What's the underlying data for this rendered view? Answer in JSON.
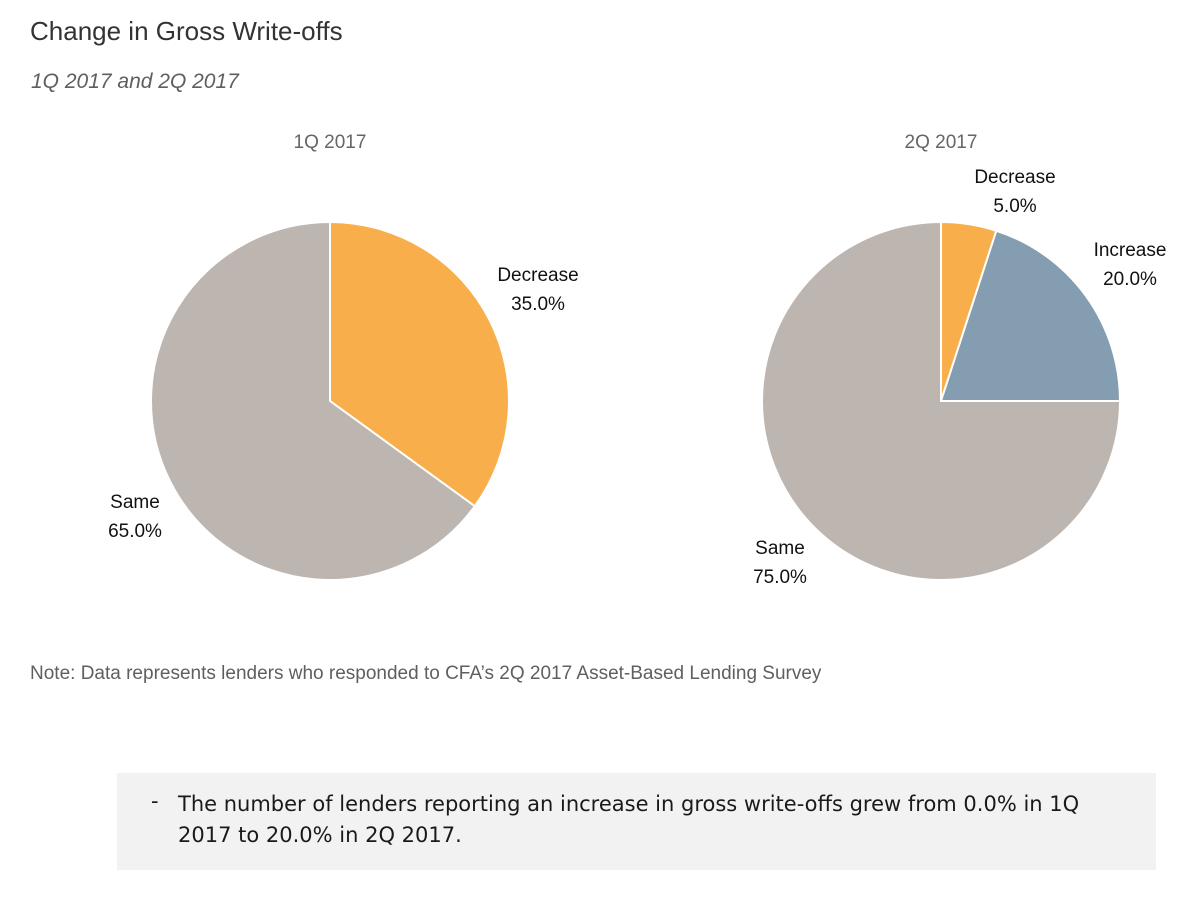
{
  "title": "Change in Gross Write-offs",
  "subtitle": "1Q 2017 and 2Q 2017",
  "colors": {
    "decrease": "#f8af4b",
    "increase": "#859db1",
    "same": "#bdb5b0"
  },
  "chart_data": [
    {
      "type": "pie",
      "title": "1Q 2017",
      "slices": [
        {
          "label": "Decrease",
          "value": 35.0,
          "value_label": "35.0%",
          "color": "#f8af4b"
        },
        {
          "label": "Same",
          "value": 65.0,
          "value_label": "65.0%",
          "color": "#bdb5b0"
        }
      ]
    },
    {
      "type": "pie",
      "title": "2Q 2017",
      "slices": [
        {
          "label": "Decrease",
          "value": 5.0,
          "value_label": "5.0%",
          "color": "#f8af4b"
        },
        {
          "label": "Increase",
          "value": 20.0,
          "value_label": "20.0%",
          "color": "#859db1"
        },
        {
          "label": "Same",
          "value": 75.0,
          "value_label": "75.0%",
          "color": "#bdb5b0"
        }
      ]
    }
  ],
  "note": "Note: Data represents lenders who responded to CFA’s 2Q 2017 Asset-Based Lending Survey",
  "callout": {
    "bullet": "-",
    "text": "The number of lenders reporting an increase in gross write-offs grew from 0.0% in 1Q 2017 to 20.0% in 2Q 2017."
  }
}
